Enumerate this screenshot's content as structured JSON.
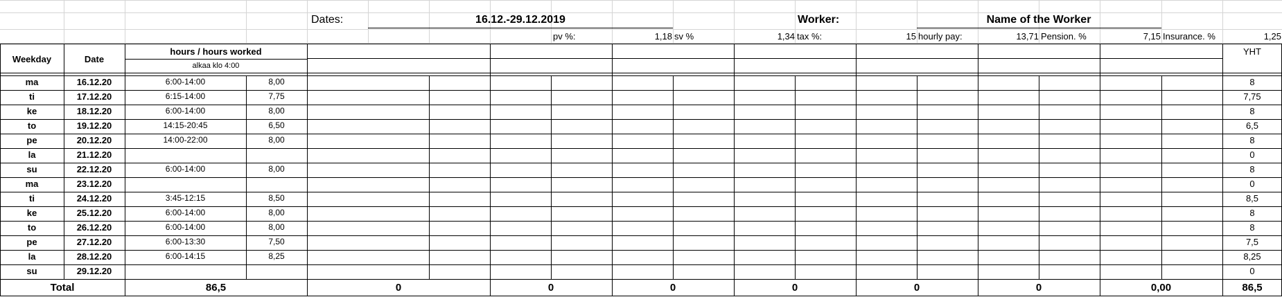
{
  "header": {
    "dates_label": "Dates:",
    "dates_value": "16.12.-29.12.2019",
    "worker_label": "Worker:",
    "worker_name": "Name of the Worker"
  },
  "params": {
    "pv_label": "pv  %:",
    "pv_value": "1,18",
    "sv_label": "sv  %",
    "sv_value": "1,34",
    "tax_label": "tax %:",
    "tax_value": "15",
    "hourly_label": "hourly pay:",
    "hourly_value": "13,71",
    "pension_label": "Pension. %",
    "pension_value": "7,15",
    "insurance_label": "Insurance. %",
    "insurance_value": "1,25"
  },
  "table": {
    "col_weekday": "Weekday",
    "col_date": "Date",
    "col_hours": "hours / hours worked",
    "col_hours_sub": "alkaa klo 4:00",
    "col_total": "YHT",
    "rows": [
      {
        "weekday": "ma",
        "date": "16.12.20",
        "time": "6:00-14:00",
        "hours": "8,00",
        "total": "8"
      },
      {
        "weekday": "ti",
        "date": "17.12.20",
        "time": "6:15-14:00",
        "hours": "7,75",
        "total": "7,75"
      },
      {
        "weekday": "ke",
        "date": "18.12.20",
        "time": "6:00-14:00",
        "hours": "8,00",
        "total": "8"
      },
      {
        "weekday": "to",
        "date": "19.12.20",
        "time": "14:15-20:45",
        "hours": "6,50",
        "total": "6,5"
      },
      {
        "weekday": "pe",
        "date": "20.12.20",
        "time": "14:00-22:00",
        "hours": "8,00",
        "total": "8"
      },
      {
        "weekday": "la",
        "date": "21.12.20",
        "time": "",
        "hours": "",
        "total": "0"
      },
      {
        "weekday": "su",
        "date": "22.12.20",
        "time": "6:00-14:00",
        "hours": "8,00",
        "total": "8"
      },
      {
        "weekday": "ma",
        "date": "23.12.20",
        "time": "",
        "hours": "",
        "total": "0"
      },
      {
        "weekday": "ti",
        "date": "24.12.20",
        "time": "3:45-12:15",
        "hours": "8,50",
        "total": "8,5"
      },
      {
        "weekday": "ke",
        "date": "25.12.20",
        "time": "6:00-14:00",
        "hours": "8,00",
        "total": "8"
      },
      {
        "weekday": "to",
        "date": "26.12.20",
        "time": "6:00-14:00",
        "hours": "8,00",
        "total": "8"
      },
      {
        "weekday": "pe",
        "date": "27.12.20",
        "time": "6:00-13:30",
        "hours": "7,50",
        "total": "7,5"
      },
      {
        "weekday": "la",
        "date": "28.12.20",
        "time": "6:00-14:15",
        "hours": "8,25",
        "total": "8,25"
      },
      {
        "weekday": "su",
        "date": "29.12.20",
        "time": "",
        "hours": "",
        "total": "0"
      }
    ],
    "totals": {
      "label": "Total",
      "hours": "86,5",
      "group_totals": [
        "0",
        "0",
        "0",
        "0",
        "0",
        "0",
        "0,00"
      ],
      "grand_total": "86,5"
    }
  }
}
